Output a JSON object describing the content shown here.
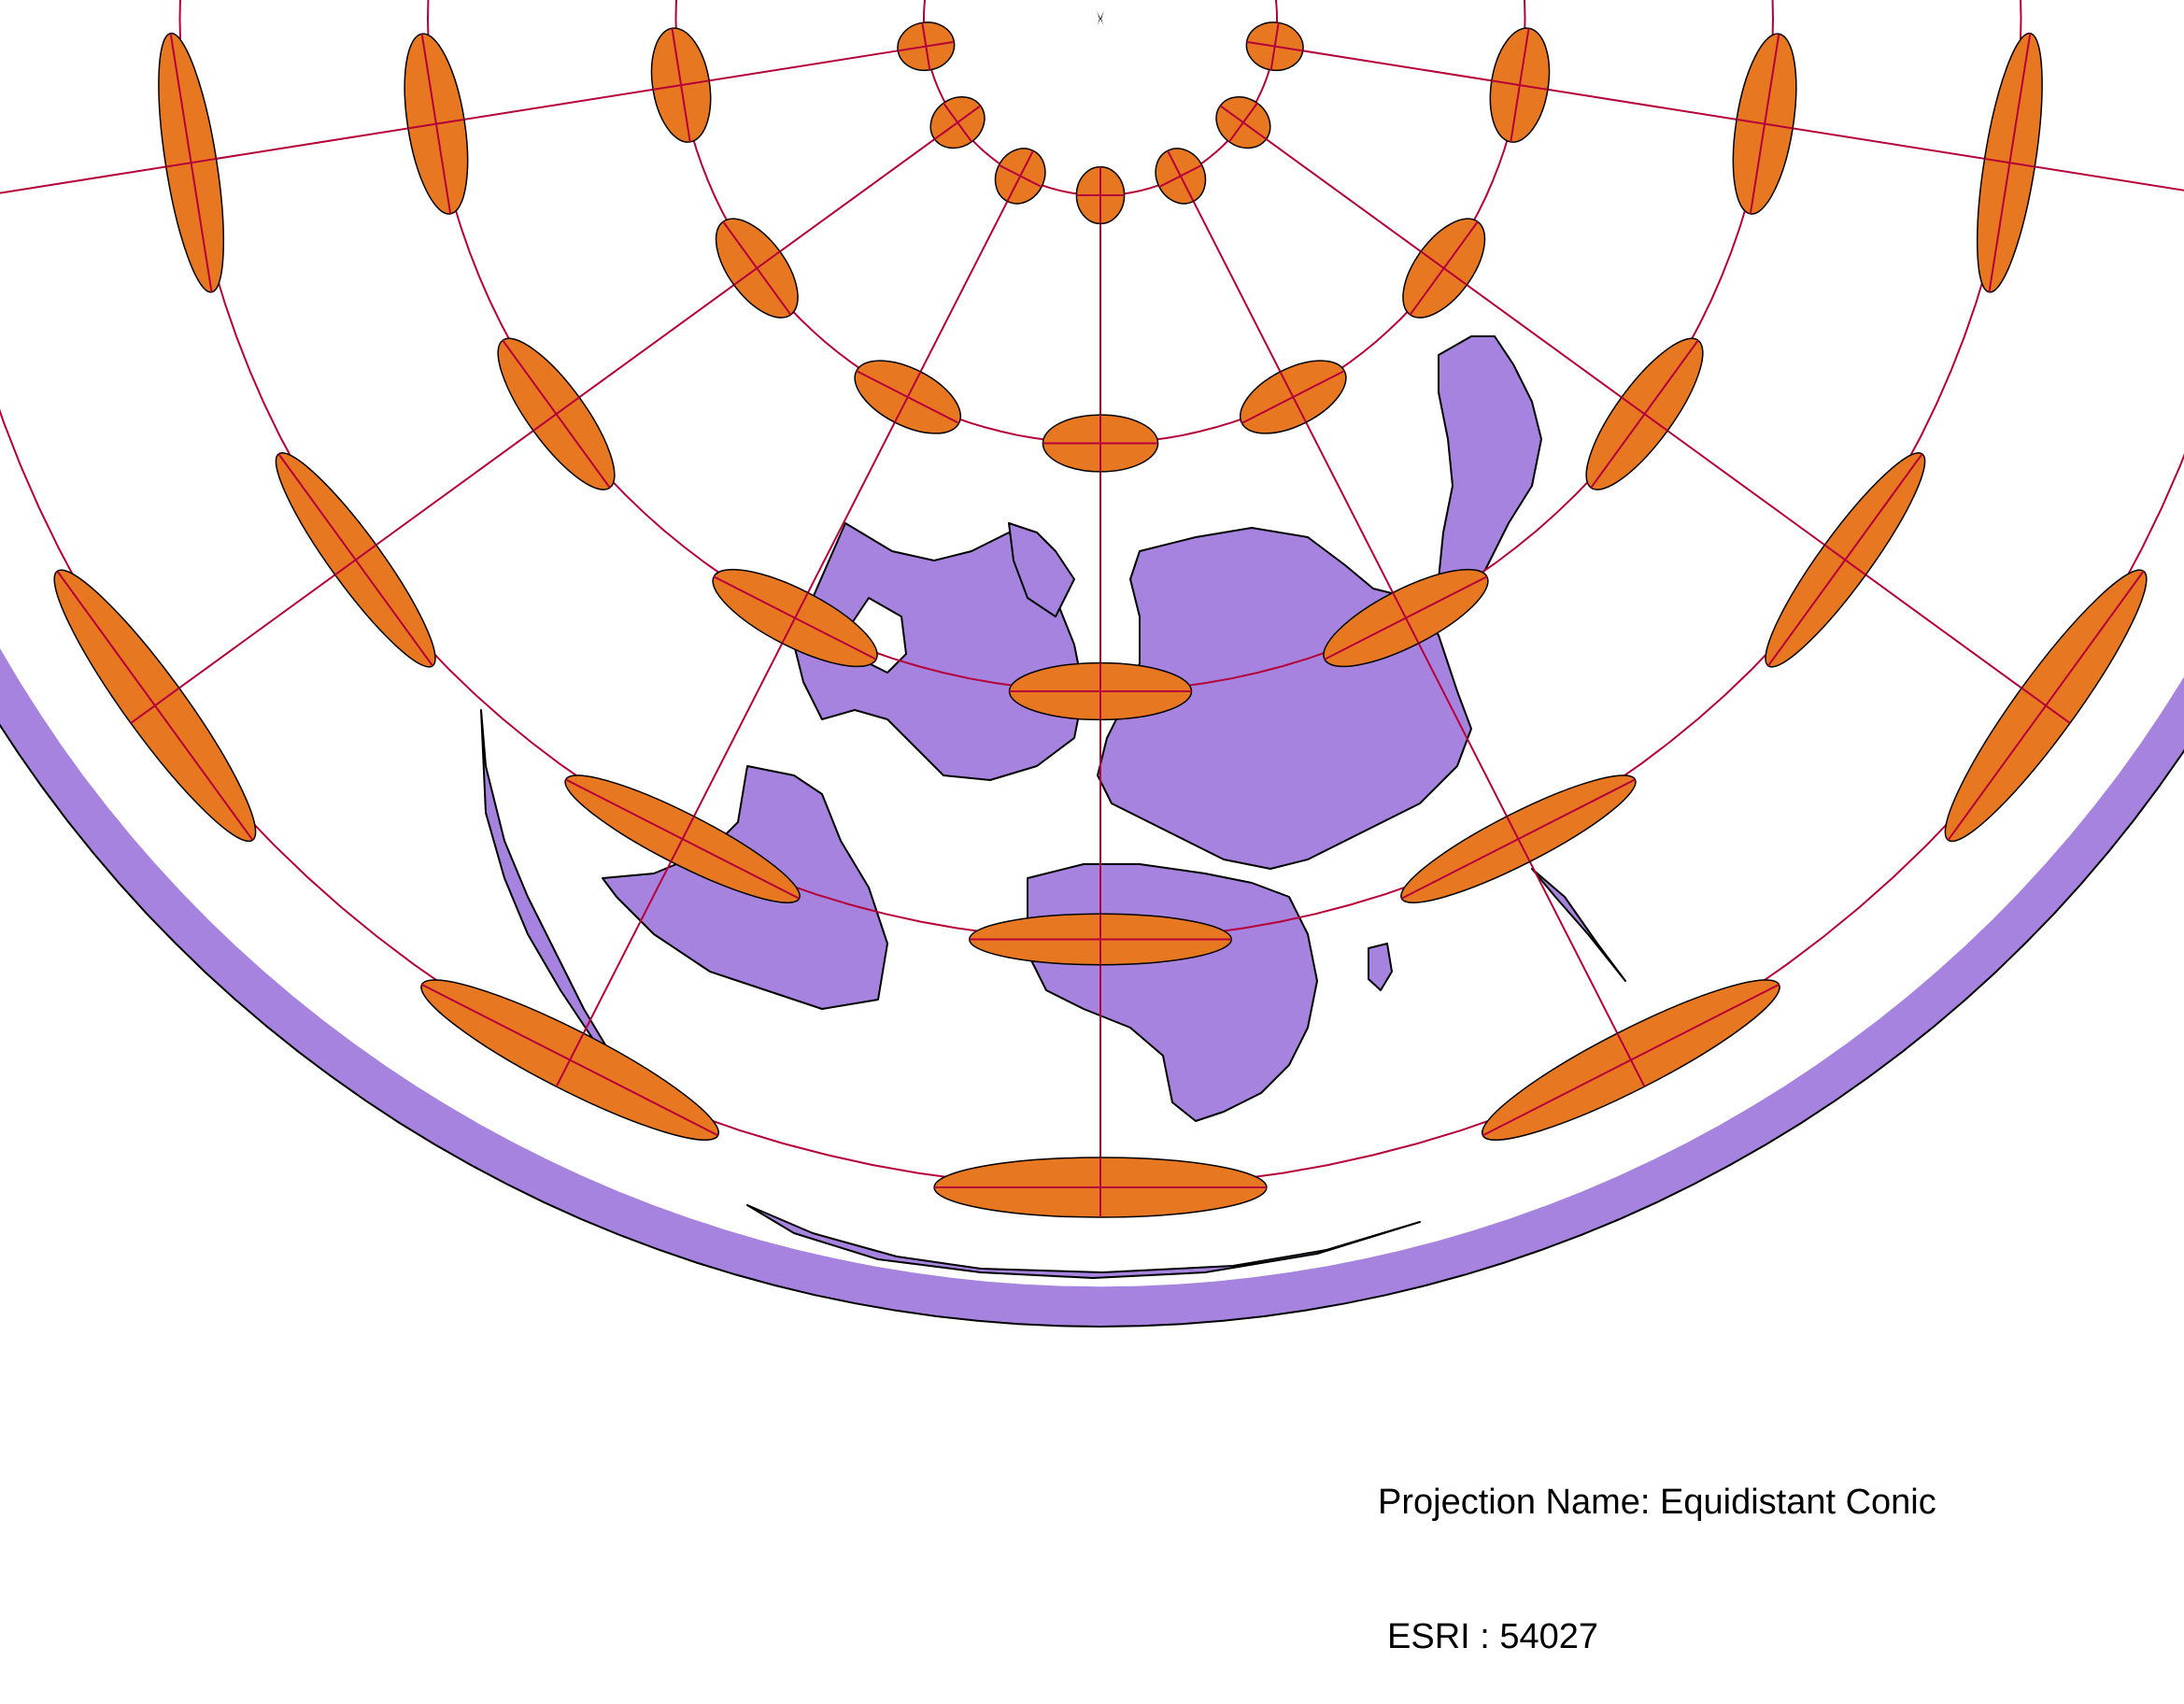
{
  "map": {
    "projection_name_label": "Projection Name: Equidistant Conic",
    "esri_label": "ESRI : 54027",
    "colors": {
      "land": "#a683de",
      "outline": "#000000",
      "indicatrix_fill": "#e87722",
      "graticule": "#b5003a",
      "background": "#ffffff"
    },
    "graticule": {
      "meridians_deg": [
        -180,
        -150,
        -120,
        -90,
        -60,
        -30,
        0,
        30,
        60,
        90,
        120,
        150,
        180
      ],
      "parallels_deg": [
        -60,
        -30,
        0,
        30,
        60
      ]
    },
    "tissot_indicatrix": {
      "shown": true,
      "longitudes_deg": [
        -150,
        -120,
        -90,
        -60,
        -30,
        0,
        30,
        60,
        90,
        120,
        150
      ],
      "latitudes_deg": [
        -60,
        -30,
        0,
        30,
        60
      ]
    }
  }
}
